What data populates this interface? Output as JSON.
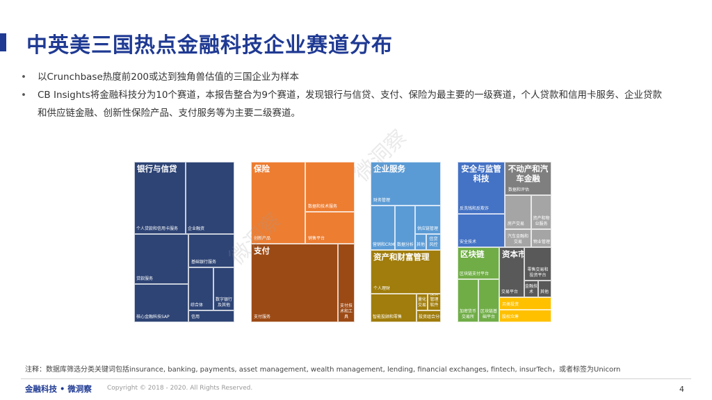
{
  "title": "中英美三国热点金融科技企业赛道分布",
  "bullets": [
    "以Crunchbase热度前200或达到独角兽估值的三国企业为样本",
    "CB Insights将金融科技分为10个赛道，本报告整合为9个赛道，发现银行与信贷、支付、保险为最主要的一级赛道，个人贷款和信用卡服务、企业贷款和供应链金融、创新性保险产品、支付服务等为主要二级赛道。"
  ],
  "watermark": "微洞察",
  "treemaps": {
    "banking": {
      "title": "银行与信贷",
      "labels": [
        "个人贷款和信用卡服务",
        "企业融资",
        "贷款服务",
        "基础银行服务",
        "核心金融科技SAP",
        "综合体",
        "数字银行及其他",
        "信用"
      ]
    },
    "insurance": {
      "title": "保险",
      "labels": [
        "创新产品",
        "数据和技术服务",
        "销售平台"
      ]
    },
    "payment": {
      "title": "支付",
      "labels": [
        "支付服务",
        "支付技术和工具"
      ]
    },
    "enterprise": {
      "title": "企业服务",
      "labels": [
        "财务管理",
        "营销和CRM",
        "数据分析",
        "其他",
        "供应链管理",
        "信贷风控"
      ]
    },
    "wealth": {
      "title": "资产和财富管理",
      "labels": [
        "个人理财",
        "智能投顾和零售",
        "量化交易",
        "投资管理软件",
        "投资组合分析"
      ]
    },
    "security": {
      "title": "安全与监管科技",
      "labels": [
        "反洗钱和反欺诈",
        "安全技术"
      ]
    },
    "realestate": {
      "title": "不动产和汽车金融",
      "labels": [
        "数据和评估",
        "房产交易",
        "资产和物业服务",
        "汽车金融和交易",
        "物业管理"
      ]
    },
    "blockchain": {
      "title": "区块链",
      "labels": [
        "区块链支付平台",
        "加密货币交易所",
        "区块链基础平台"
      ]
    },
    "capital": {
      "title": "资本市场",
      "labels": [
        "交易平台",
        "零售交易和投资平台",
        "金融技术",
        "其他",
        "另类投资",
        "股权众筹"
      ]
    }
  },
  "note": "注释：数据库筛选分类关键词包括insurance, banking, payments, asset management, wealth management, lending, financial exchanges, fintech, insurTech，或者标签为Unicorn",
  "footer": {
    "brand": "金融科技 • 微洞察",
    "copyright": "Copyright © 2018 - 2020. All Rights Reserved.",
    "page": "4"
  }
}
